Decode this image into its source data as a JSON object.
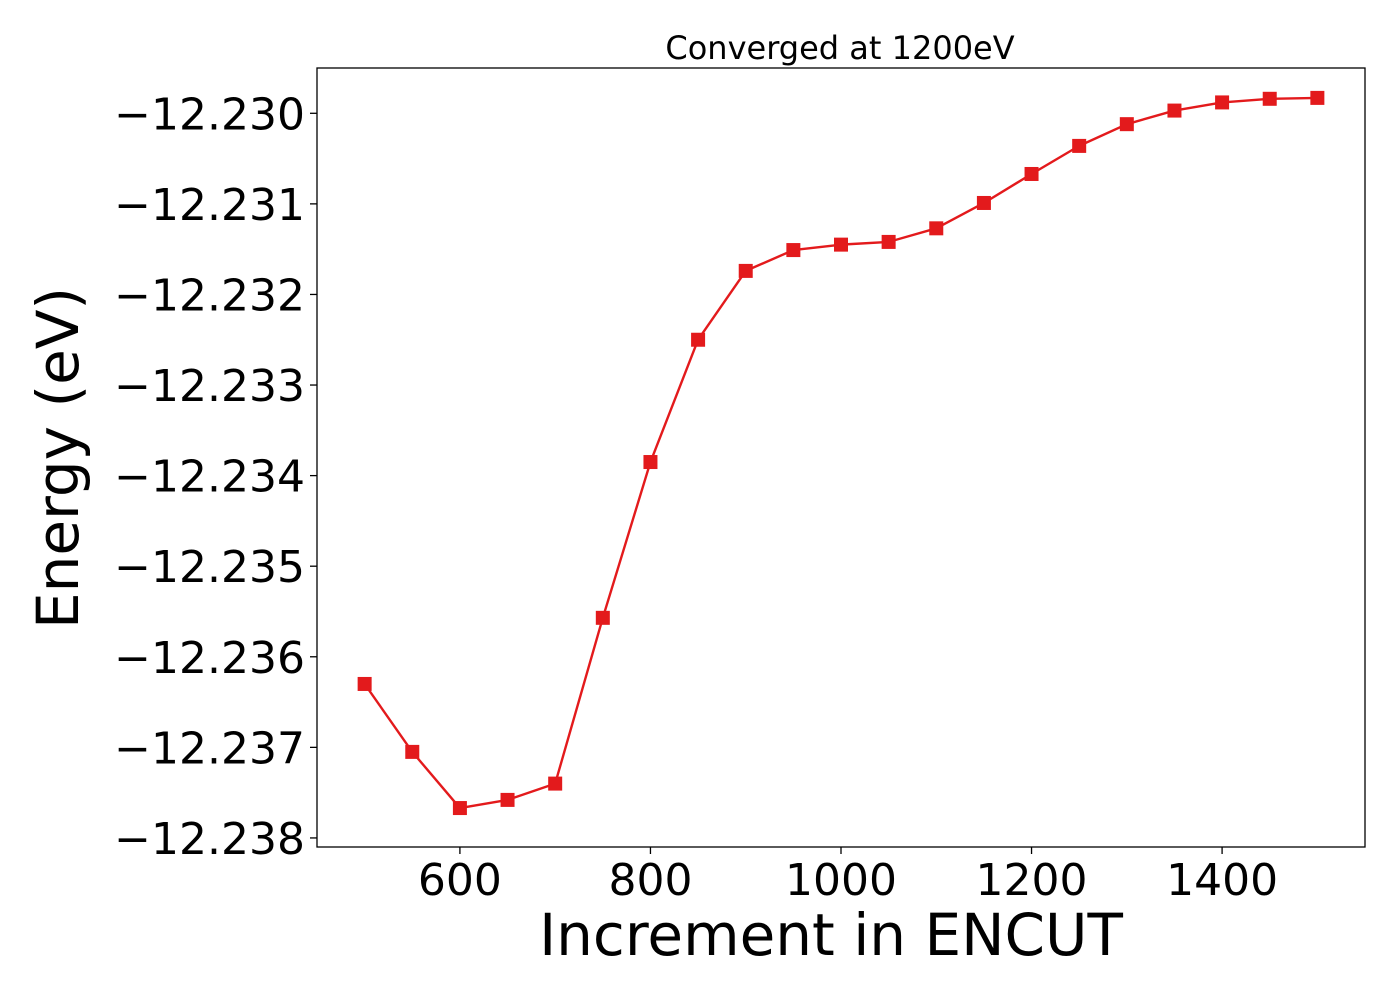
{
  "chart_data": {
    "type": "line",
    "title": "Converged at 1200eV",
    "xlabel": "Increment in ENCUT",
    "ylabel": "Energy (eV)",
    "xlim": [
      450,
      1550
    ],
    "ylim": [
      -12.2381,
      -12.2295
    ],
    "x_ticks": [
      600,
      800,
      1000,
      1200,
      1400
    ],
    "x_tick_labels": [
      "600",
      "800",
      "1000",
      "1200",
      "1400"
    ],
    "y_ticks": [
      -12.238,
      -12.237,
      -12.236,
      -12.235,
      -12.234,
      -12.233,
      -12.232,
      -12.231,
      -12.23
    ],
    "y_tick_labels": [
      "−12.238",
      "−12.237",
      "−12.236",
      "−12.235",
      "−12.234",
      "−12.233",
      "−12.232",
      "−12.231",
      "−12.230"
    ],
    "grid": false,
    "series": [
      {
        "color": "#e31a1c",
        "marker": "square",
        "x": [
          500,
          550,
          600,
          650,
          700,
          750,
          800,
          850,
          900,
          950,
          1000,
          1050,
          1100,
          1150,
          1200,
          1250,
          1300,
          1350,
          1400,
          1450,
          1500
        ],
        "y": [
          -12.2363,
          -12.23705,
          -12.23767,
          -12.23758,
          -12.2374,
          -12.23557,
          -12.23385,
          -12.2325,
          -12.23174,
          -12.23151,
          -12.23145,
          -12.23142,
          -12.23127,
          -12.23099,
          -12.23067,
          -12.23036,
          -12.23012,
          -12.22997,
          -12.22988,
          -12.22984,
          -12.22983
        ]
      }
    ]
  }
}
